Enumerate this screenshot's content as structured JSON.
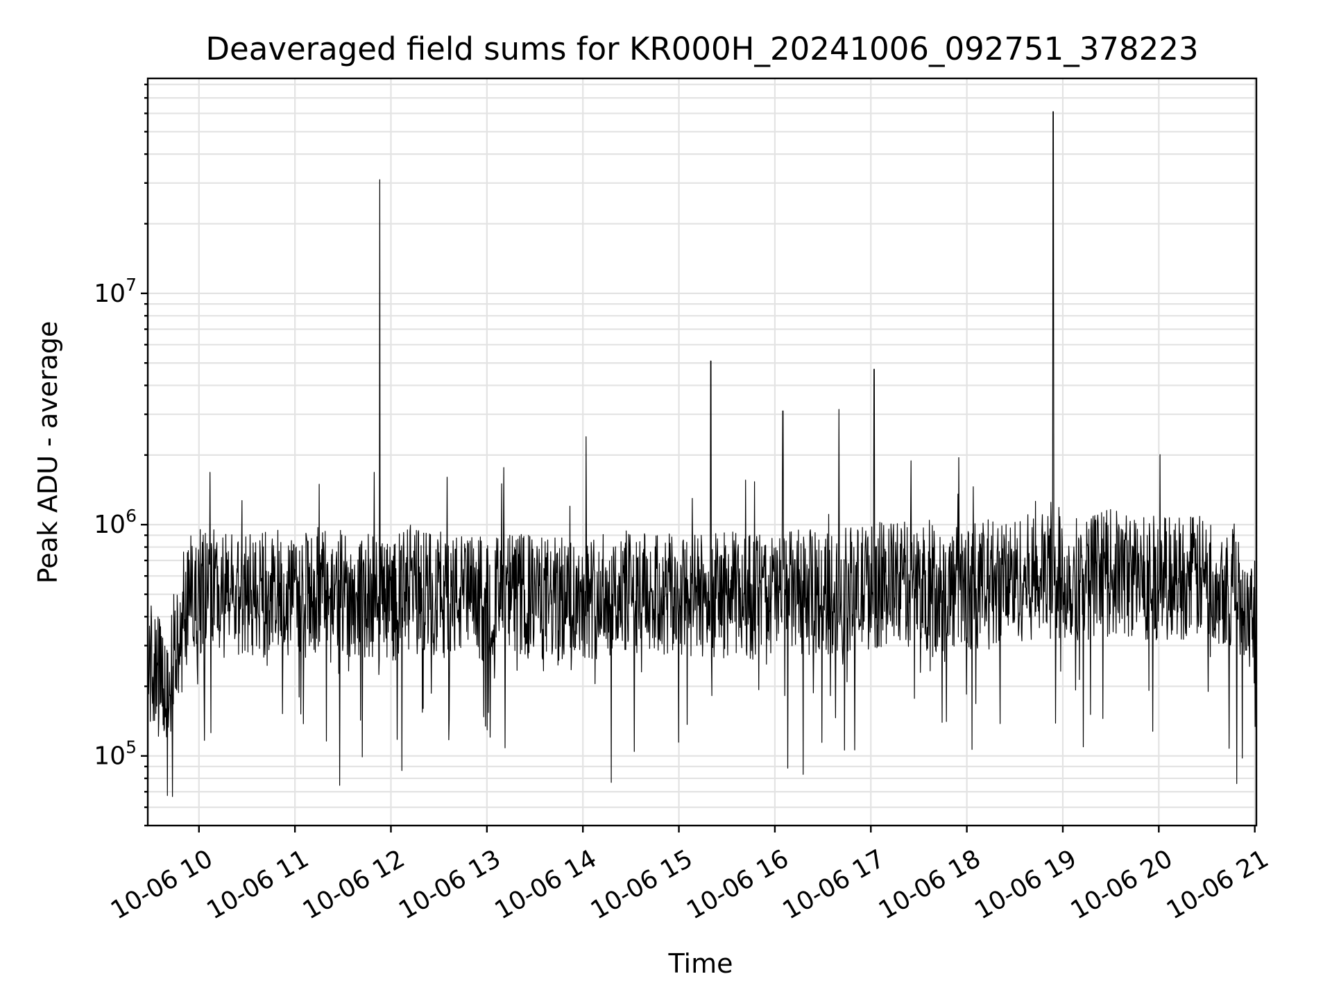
{
  "chart_data": {
    "type": "line",
    "title": "Deaveraged field sums for KR000H_20241006_092751_378223",
    "xlabel": "Time",
    "ylabel": "Peak ADU - average",
    "yscale": "log",
    "grid": "on (major and minor)",
    "legend": "none",
    "series_color": "#000000",
    "grid_color": "#e3e3e3",
    "xlim": [
      "2024-10-06 09:28",
      "2024-10-06 21:01"
    ],
    "ylim": [
      50000,
      85000000
    ],
    "x_ticks": [
      "10-06 10",
      "10-06 11",
      "10-06 12",
      "10-06 13",
      "10-06 14",
      "10-06 15",
      "10-06 16",
      "10-06 17",
      "10-06 18",
      "10-06 19",
      "10-06 20",
      "10-06 21"
    ],
    "y_ticks": [
      {
        "value": 100000,
        "base": "10",
        "exp": "5"
      },
      {
        "value": 1000000,
        "base": "10",
        "exp": "6"
      },
      {
        "value": 10000000,
        "base": "10",
        "exp": "7"
      }
    ],
    "series": [
      {
        "x": [
          "2024-10-06 09:30",
          "2024-10-06 09:40",
          "2024-10-06 09:50",
          "2024-10-06 10:00",
          "2024-10-06 10:15",
          "2024-10-06 10:30",
          "2024-10-06 10:45",
          "2024-10-06 11:00",
          "2024-10-06 11:15",
          "2024-10-06 11:30",
          "2024-10-06 11:45",
          "2024-10-06 11:53",
          "2024-10-06 12:00",
          "2024-10-06 12:15",
          "2024-10-06 12:30",
          "2024-10-06 12:45",
          "2024-10-06 13:00",
          "2024-10-06 13:15",
          "2024-10-06 13:30",
          "2024-10-06 13:45",
          "2024-10-06 14:02",
          "2024-10-06 14:15",
          "2024-10-06 14:30",
          "2024-10-06 14:45",
          "2024-10-06 15:00",
          "2024-10-06 15:20",
          "2024-10-06 15:30",
          "2024-10-06 15:45",
          "2024-10-06 16:05",
          "2024-10-06 16:15",
          "2024-10-06 16:30",
          "2024-10-06 16:40",
          "2024-10-06 17:02",
          "2024-10-06 17:15",
          "2024-10-06 17:30",
          "2024-10-06 17:45",
          "2024-10-06 17:55",
          "2024-10-06 18:15",
          "2024-10-06 18:30",
          "2024-10-06 18:45",
          "2024-10-06 18:54",
          "2024-10-06 19:00",
          "2024-10-06 19:15",
          "2024-10-06 19:30",
          "2024-10-06 19:45",
          "2024-10-06 20:00",
          "2024-10-06 20:15",
          "2024-10-06 20:30",
          "2024-10-06 20:45",
          "2024-10-06 21:00"
        ],
        "values": [
          250000,
          180000,
          450000,
          520000,
          500000,
          480000,
          510000,
          470000,
          520000,
          500000,
          490000,
          31000000,
          480000,
          520000,
          500000,
          490000,
          470000,
          500000,
          480000,
          470000,
          2400000,
          500000,
          510000,
          490000,
          480000,
          5100000,
          500000,
          490000,
          3100000,
          510000,
          500000,
          3150000,
          4700000,
          560000,
          540000,
          520000,
          1950000,
          560000,
          580000,
          600000,
          61000000,
          580000,
          600000,
          620000,
          600000,
          590000,
          600000,
          580000,
          560000,
          420000
        ]
      }
    ],
    "annotated_peaks": [
      {
        "x": "2024-10-06 11:53",
        "value": 31000000
      },
      {
        "x": "2024-10-06 18:54",
        "value": 61000000
      }
    ]
  }
}
